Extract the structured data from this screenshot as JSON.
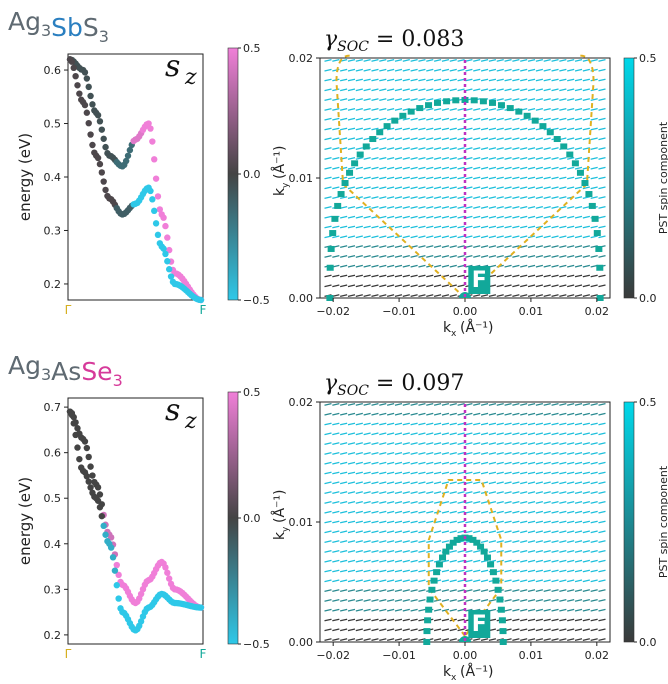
{
  "panels": [
    {
      "compound": [
        {
          "text": "Ag",
          "sub": "3",
          "color": "#5f6a72"
        },
        {
          "text": "Sb",
          "sub": "",
          "color": "#2a7fc0"
        },
        {
          "text": "S",
          "sub": "3",
          "color": "#5f6a72"
        }
      ],
      "band_label": "s",
      "band_label_sub": "z",
      "band_ylabel": "energy (eV)",
      "band_yticks": [
        "0.6",
        "0.5",
        "0.4",
        "0.3",
        "0.2"
      ],
      "band_cbar_ticks": [
        "0.5",
        "0.0",
        "−0.5"
      ],
      "band_x_left": "Γ",
      "band_x_right": "F",
      "gamma_label": "γ",
      "gamma_sub": "SOC",
      "gamma_value": "= 0.083",
      "spin_xlabel": "k",
      "spin_xlabel_sub": "x",
      "spin_xlabel_unit": "(Å",
      "spin_ylabel": "k",
      "spin_ylabel_sub": "y",
      "spin_xticks": [
        "−0.02",
        "−0.01",
        "0.00",
        "0.01",
        "0.02"
      ],
      "spin_yticks": [
        "0.02",
        "0.01",
        "0.00"
      ],
      "point_label": "F",
      "spin_cbar_label": "PST spin component",
      "spin_cbar_ticks": [
        "0.5",
        "0.0"
      ]
    },
    {
      "compound": [
        {
          "text": "Ag",
          "sub": "3",
          "color": "#5f6a72"
        },
        {
          "text": "As",
          "sub": "",
          "color": "#5f6a72"
        },
        {
          "text": "Se",
          "sub": "3",
          "color": "#d63a9a"
        }
      ],
      "band_label": "s",
      "band_label_sub": "z",
      "band_ylabel": "energy (eV)",
      "band_yticks": [
        "0.7",
        "0.6",
        "0.5",
        "0.4",
        "0.3",
        "0.2"
      ],
      "band_cbar_ticks": [
        "0.5",
        "0.0",
        "−0.5"
      ],
      "band_x_left": "Γ",
      "band_x_right": "F",
      "gamma_label": "γ",
      "gamma_sub": "SOC",
      "gamma_value": "= 0.097",
      "spin_xlabel": "k",
      "spin_xlabel_sub": "x",
      "spin_xlabel_unit": "(Å",
      "spin_ylabel": "k",
      "spin_ylabel_sub": "y",
      "spin_xticks": [
        "−0.02",
        "−0.01",
        "0.00",
        "0.01",
        "0.02"
      ],
      "spin_yticks": [
        "0.02",
        "0.01",
        "0.00"
      ],
      "point_label": "F",
      "spin_cbar_label": "PST spin component",
      "spin_cbar_ticks": [
        "0.5",
        "0.0"
      ]
    }
  ],
  "colors": {
    "spin_up": "#f07fd8",
    "spin_zero": "#444444",
    "spin_down": "#2ec8e8",
    "fermi_circle": "#12a89a",
    "contour_dashed": "#e0b020",
    "midline": "#c030c0",
    "f_box": "#12a89a"
  },
  "chart_data": [
    {
      "type": "scatter",
      "title": "",
      "xlabel": "",
      "ylabel": "energy (eV)",
      "x": [
        "Γ",
        "F"
      ],
      "ylim": [
        0.17,
        0.63
      ],
      "colorbar_range": [
        -0.5,
        0.5
      ],
      "series": [
        {
          "x": [
            0,
            0.1,
            0.2,
            0.3,
            0.4,
            0.5,
            0.6,
            0.7,
            0.8,
            1.0
          ],
          "values": [
            0.62,
            0.6,
            0.52,
            0.44,
            0.42,
            0.47,
            0.5,
            0.33,
            0.22,
            0.17
          ]
        },
        {
          "x": [
            0,
            0.1,
            0.2,
            0.3,
            0.4,
            0.5,
            0.6,
            0.7,
            0.8,
            1.0
          ],
          "values": [
            0.62,
            0.54,
            0.44,
            0.36,
            0.33,
            0.35,
            0.38,
            0.27,
            0.2,
            0.17
          ]
        }
      ]
    },
    {
      "type": "scatter",
      "title": "γSOC = 0.083",
      "xlabel": "kx (Å-1)",
      "ylabel": "ky (Å-1)",
      "xlim": [
        -0.022,
        0.022
      ],
      "ylim": [
        0,
        0.02
      ],
      "gamma_soc": 0.083,
      "fermi_contour_top_ky": 0.0165,
      "colorbar_range": [
        0.0,
        0.5
      ]
    },
    {
      "type": "scatter",
      "title": "",
      "xlabel": "",
      "ylabel": "energy (eV)",
      "x": [
        "Γ",
        "F"
      ],
      "ylim": [
        0.18,
        0.72
      ],
      "colorbar_range": [
        -0.5,
        0.5
      ],
      "series": [
        {
          "x": [
            0,
            0.1,
            0.2,
            0.3,
            0.4,
            0.5,
            0.6,
            0.7,
            0.8,
            1.0
          ],
          "values": [
            0.69,
            0.63,
            0.53,
            0.42,
            0.31,
            0.27,
            0.32,
            0.36,
            0.3,
            0.26
          ]
        },
        {
          "x": [
            0,
            0.1,
            0.2,
            0.3,
            0.4,
            0.5,
            0.6,
            0.7,
            0.8,
            1.0
          ],
          "values": [
            0.69,
            0.56,
            0.5,
            0.4,
            0.25,
            0.21,
            0.26,
            0.29,
            0.27,
            0.26
          ]
        }
      ]
    },
    {
      "type": "scatter",
      "title": "γSOC = 0.097",
      "xlabel": "kx (Å-1)",
      "ylabel": "ky (Å-1)",
      "xlim": [
        -0.022,
        0.022
      ],
      "ylim": [
        0,
        0.02
      ],
      "gamma_soc": 0.097,
      "fermi_contour_top_ky": 0.0087,
      "colorbar_range": [
        0.0,
        0.5
      ]
    }
  ]
}
